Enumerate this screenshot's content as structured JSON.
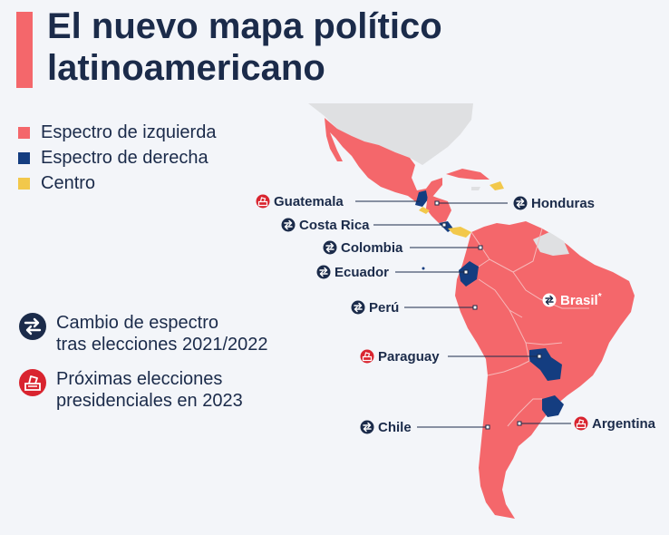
{
  "title_line1": "El nuevo mapa político",
  "title_line2": "latinoamericano",
  "colors": {
    "left": "#f4676b",
    "right": "#143d80",
    "center": "#f2c84b",
    "nodata": "#dfe0e2",
    "accent": "#f4676b",
    "navy": "#1b2b4a"
  },
  "legend": [
    {
      "label": "Espectro de izquierda",
      "color": "#f4676b"
    },
    {
      "label": "Espectro de derecha",
      "color": "#143d80"
    },
    {
      "label": "Centro",
      "color": "#f2c84b"
    }
  ],
  "symbol_legend": {
    "change": {
      "line1": "Cambio de espectro",
      "line2": "tras elecciones 2021/2022",
      "icon": "swap-arrows-icon"
    },
    "election": {
      "line1": "Próximas elecciones",
      "line2": "presidenciales en 2023",
      "icon": "ballot-box-icon"
    }
  },
  "countries": {
    "guatemala": {
      "name": "Guatemala",
      "marker": "election"
    },
    "honduras": {
      "name": "Honduras",
      "marker": "change"
    },
    "costa_rica": {
      "name": "Costa Rica",
      "marker": "change"
    },
    "colombia": {
      "name": "Colombia",
      "marker": "change"
    },
    "ecuador": {
      "name": "Ecuador",
      "marker": "change"
    },
    "peru": {
      "name": "Perú",
      "marker": "change"
    },
    "brasil": {
      "name": "Brasil",
      "superscript": "*",
      "marker": "change"
    },
    "paraguay": {
      "name": "Paraguay",
      "marker": "election"
    },
    "argentina": {
      "name": "Argentina",
      "marker": "election"
    },
    "chile": {
      "name": "Chile",
      "marker": "change"
    }
  }
}
